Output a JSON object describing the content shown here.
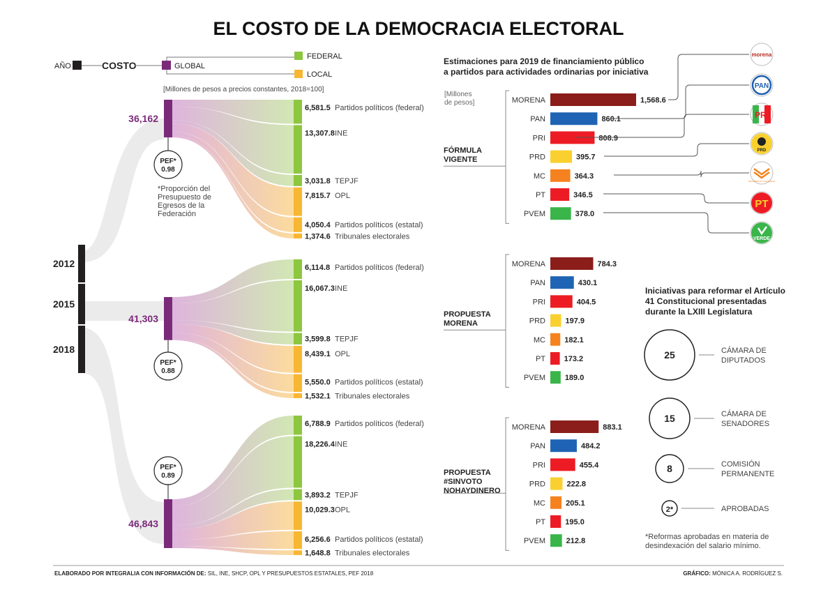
{
  "title": "EL COSTO DE LA DEMOCRACIA ELECTORAL",
  "legend": {
    "year": "AÑO",
    "cost": "COSTO",
    "global": "GLOBAL",
    "federal": "FEDERAL",
    "local": "LOCAL",
    "units": "[Millones de pesos a precios constantes, 2018=100]",
    "colors": {
      "global": "#7b2a7a",
      "federal": "#8dc63f",
      "local": "#f7b733",
      "year": "#231f20"
    }
  },
  "pef_note": [
    "*Proporción del",
    "Presupuesto de",
    "Egresos de la",
    "Federación"
  ],
  "pef_label": "PEF*",
  "chart_data": [
    {
      "type": "sankey",
      "title": "EL COSTO DE LA DEMOCRACIA ELECTORAL",
      "years": [
        {
          "year": "2012",
          "global": 36162,
          "global_label": "36,162",
          "pef": "0.98",
          "flows": [
            {
              "label": "Partidos políticos (federal)",
              "value": 6581.5,
              "value_label": "6,581.5",
              "level": "federal"
            },
            {
              "label": "INE",
              "value": 13307.8,
              "value_label": "13,307.8",
              "level": "federal"
            },
            {
              "label": "TEPJF",
              "value": 3031.8,
              "value_label": "3,031.8",
              "level": "federal"
            },
            {
              "label": "OPL",
              "value": 7815.7,
              "value_label": "7,815.7",
              "level": "local"
            },
            {
              "label": "Partidos políticos (estatal)",
              "value": 4050.4,
              "value_label": "4,050.4",
              "level": "local"
            },
            {
              "label": "Tribunales electorales",
              "value": 1374.6,
              "value_label": "1,374.6",
              "level": "local"
            }
          ]
        },
        {
          "year": "2015",
          "global": 41303,
          "global_label": "41,303",
          "pef": "0.88",
          "flows": [
            {
              "label": "Partidos políticos (federal)",
              "value": 6114.8,
              "value_label": "6,114.8",
              "level": "federal"
            },
            {
              "label": "INE",
              "value": 16067.3,
              "value_label": "16,067.3",
              "level": "federal"
            },
            {
              "label": "TEPJF",
              "value": 3599.8,
              "value_label": "3,599.8",
              "level": "federal"
            },
            {
              "label": "OPL",
              "value": 8439.1,
              "value_label": "8,439.1",
              "level": "local"
            },
            {
              "label": "Partidos políticos (estatal)",
              "value": 5550.0,
              "value_label": "5,550.0",
              "level": "local"
            },
            {
              "label": "Tribunales electorales",
              "value": 1532.1,
              "value_label": "1,532.1",
              "level": "local"
            }
          ]
        },
        {
          "year": "2018",
          "global": 46843,
          "global_label": "46,843",
          "pef": "0.89",
          "flows": [
            {
              "label": "Partidos políticos (federal)",
              "value": 6788.9,
              "value_label": "6,788.9",
              "level": "federal"
            },
            {
              "label": "INE",
              "value": 18226.4,
              "value_label": "18,226.4",
              "level": "federal"
            },
            {
              "label": "TEPJF",
              "value": 3893.2,
              "value_label": "3,893.2",
              "level": "federal"
            },
            {
              "label": "OPL",
              "value": 10029.3,
              "value_label": "10,029.3",
              "level": "local"
            },
            {
              "label": "Partidos políticos (estatal)",
              "value": 6256.6,
              "value_label": "6,256.6",
              "level": "local"
            },
            {
              "label": "Tribunales electorales",
              "value": 1648.8,
              "value_label": "1,648.8",
              "level": "local"
            }
          ]
        }
      ]
    },
    {
      "type": "bar",
      "title": [
        "Estimaciones  para 2019 de financiamiento público",
        "a partidos para actividades ordinarias por iniciativa"
      ],
      "unit": [
        "[Millones",
        "de pesos]"
      ],
      "categories": [
        "MORENA",
        "PAN",
        "PRI",
        "PRD",
        "MC",
        "PT",
        "PVEM"
      ],
      "colors": [
        "#8b1e1a",
        "#1f64b4",
        "#ed1c24",
        "#f9d030",
        "#f5821f",
        "#ed1c24",
        "#3ab54a"
      ],
      "groups": [
        {
          "name": [
            "FÓRMULA",
            "VIGENTE"
          ],
          "values": [
            1568.6,
            860.1,
            808.9,
            395.7,
            364.3,
            346.5,
            378.0
          ],
          "labels": [
            "1,568.6",
            "860.1",
            "808.9",
            "395.7",
            "364.3",
            "346.5",
            "378.0"
          ]
        },
        {
          "name": [
            "PROPUESTA",
            "MORENA"
          ],
          "values": [
            784.3,
            430.1,
            404.5,
            197.9,
            182.1,
            173.2,
            189.0
          ],
          "labels": [
            "784.3",
            "430.1",
            "404.5",
            "197.9",
            "182.1",
            "173.2",
            "189.0"
          ]
        },
        {
          "name": [
            "PROPUESTA",
            "#SINVOTO",
            "NOHAYDINERO"
          ],
          "values": [
            883.1,
            484.2,
            455.4,
            222.8,
            205.1,
            195.0,
            212.8
          ],
          "labels": [
            "883.1",
            "484.2",
            "455.4",
            "222.8",
            "205.1",
            "195.0",
            "212.8"
          ]
        }
      ]
    }
  ],
  "party_logos": [
    {
      "name": "morena",
      "text": "morena",
      "color": "#b5261e",
      "icon": "morena-logo"
    },
    {
      "name": "PAN",
      "text": "PAN",
      "color": "#1f5fb0",
      "icon": "pan-logo"
    },
    {
      "name": "PRI",
      "text": "PRI",
      "color": "#ed1c24",
      "icon": "pri-logo"
    },
    {
      "name": "PRD",
      "text": "PRD",
      "color": "#f9d030",
      "icon": "prd-logo"
    },
    {
      "name": "MC",
      "text": "MOVIMIENTO CIUDADANO",
      "color": "#f5821f",
      "icon": "mc-logo"
    },
    {
      "name": "PT",
      "text": "PT",
      "color": "#ed1c24",
      "icon": "pt-logo"
    },
    {
      "name": "VERDE",
      "text": "VERDE",
      "color": "#3ab54a",
      "icon": "verde-logo"
    }
  ],
  "initiatives": {
    "title": [
      "Iniciativas para reformar el Artículo",
      "41 Constitucional presentadas",
      "durante la LXIII Legislatura"
    ],
    "items": [
      {
        "value": "25",
        "label": [
          "CÁMARA DE",
          "DIPUTADOS"
        ]
      },
      {
        "value": "15",
        "label": [
          "CÁMARA DE",
          "SENADORES"
        ]
      },
      {
        "value": "8",
        "label": [
          "COMISIÓN",
          "PERMANENTE"
        ]
      },
      {
        "value": "2*",
        "label": [
          "APROBADAS"
        ]
      }
    ],
    "note": [
      "*Reformas aprobadas en materia de",
      "desindexación del salario mínimo."
    ]
  },
  "footer": {
    "source_bold": "ELABORADO POR INTEGRALIA CON INFORMACIÓN DE:",
    "source_text": " SIL, INE, SHCP, OPL Y PRESUPUESTOS ESTATALES, PEF 2018",
    "credit_bold": "GRÁFICO:",
    "credit_text": " MÓNICA A. RODRÍGUEZ S."
  }
}
